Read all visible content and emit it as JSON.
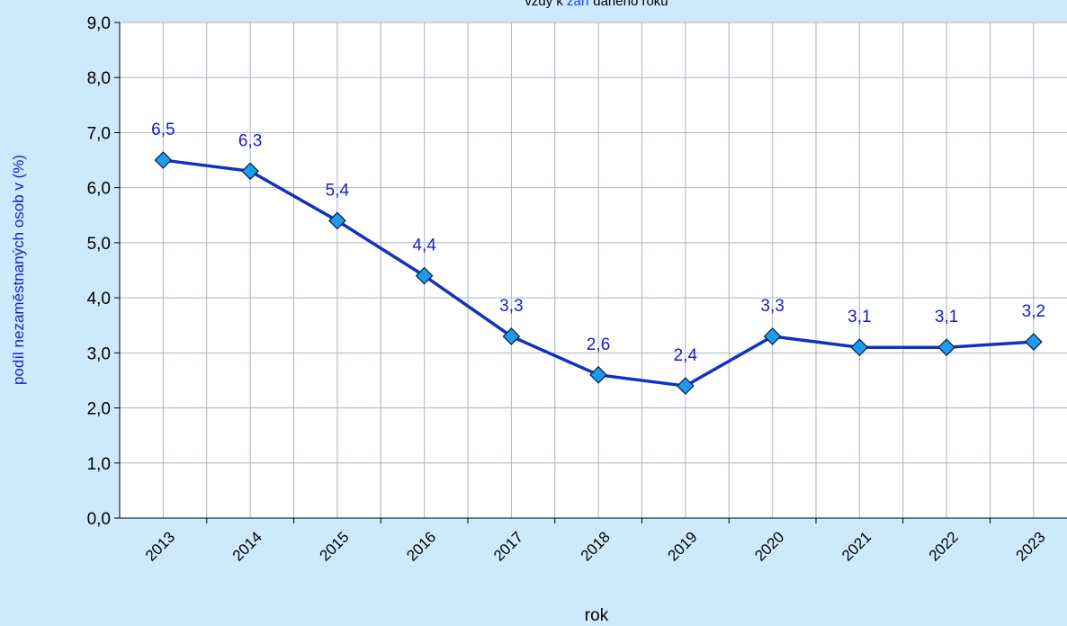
{
  "chart_data": {
    "type": "line",
    "subtitle_parts": [
      "vždy k ",
      "září",
      " daného roku"
    ],
    "y_label": "podíl nezaměstnaných osob v (%)",
    "x_label": "rok",
    "categories": [
      "2013",
      "2014",
      "2015",
      "2016",
      "2017",
      "2018",
      "2019",
      "2020",
      "2021",
      "2022",
      "2023"
    ],
    "series": [
      {
        "color": "#1133bb",
        "marker_color": "#1e9be9",
        "values": [
          6.5,
          6.3,
          5.4,
          4.4,
          3.3,
          2.6,
          2.4,
          3.3,
          3.1,
          3.1,
          3.2
        ],
        "value_labels": [
          "6,5",
          "6,3",
          "5,4",
          "4,4",
          "3,3",
          "2,6",
          "2,4",
          "3,3",
          "3,1",
          "3,1",
          "3,2"
        ]
      }
    ],
    "ylim": [
      0,
      9
    ],
    "yticks": [
      {
        "value": 0,
        "label": "0,0"
      },
      {
        "value": 1,
        "label": "1,0"
      },
      {
        "value": 2,
        "label": "2,0"
      },
      {
        "value": 3,
        "label": "3,0"
      },
      {
        "value": 4,
        "label": "4,0"
      },
      {
        "value": 5,
        "label": "5,0"
      },
      {
        "value": 6,
        "label": "6,0"
      },
      {
        "value": 7,
        "label": "7,0"
      },
      {
        "value": 8,
        "label": "8,0"
      },
      {
        "value": 9,
        "label": "9,0"
      }
    ],
    "grid": true
  }
}
